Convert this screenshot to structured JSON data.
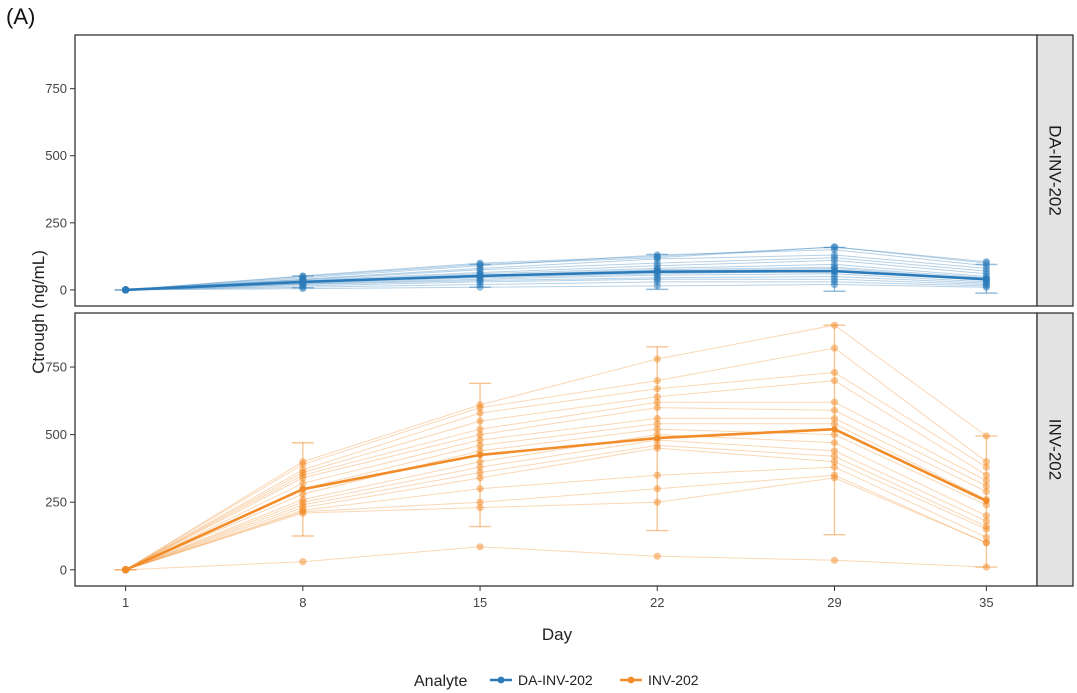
{
  "figure_label": "(A)",
  "chart_data": {
    "type": "line",
    "xlabel": "Day",
    "ylabel": "Ctrough (ng/mL)",
    "x_ticks": [
      1,
      8,
      15,
      22,
      29,
      35
    ],
    "y_ticks": [
      0,
      250,
      500,
      750
    ],
    "xlim": [
      -1,
      37
    ],
    "ylim": [
      -60,
      950
    ],
    "grid": false,
    "legend": {
      "title": "Analyte",
      "position": "bottom",
      "entries": [
        "DA-INV-202",
        "INV-202"
      ]
    },
    "colors": {
      "DA-INV-202": "#2b7bba",
      "INV-202": "#f28c28"
    },
    "facets": [
      {
        "strip_label": "DA-INV-202",
        "analyte": "DA-INV-202",
        "mean": {
          "x": [
            1,
            8,
            15,
            22,
            29,
            35
          ],
          "y": [
            0,
            30,
            52,
            68,
            70,
            40
          ]
        },
        "error_bars": [
          {
            "x": 1,
            "low": 0,
            "high": 0
          },
          {
            "x": 8,
            "low": 8,
            "high": 52
          },
          {
            "x": 15,
            "low": 10,
            "high": 95
          },
          {
            "x": 22,
            "low": 2,
            "high": 132
          },
          {
            "x": 29,
            "low": -5,
            "high": 158
          },
          {
            "x": 35,
            "low": -12,
            "high": 95
          }
        ],
        "subjects": [
          [
            0,
            50,
            95,
            120,
            160,
            100
          ],
          [
            0,
            45,
            90,
            130,
            150,
            90
          ],
          [
            0,
            40,
            80,
            115,
            130,
            80
          ],
          [
            0,
            38,
            75,
            100,
            120,
            70
          ],
          [
            0,
            35,
            65,
            90,
            110,
            60
          ],
          [
            0,
            32,
            60,
            80,
            95,
            50
          ],
          [
            0,
            30,
            55,
            75,
            85,
            45
          ],
          [
            0,
            28,
            50,
            70,
            80,
            40
          ],
          [
            0,
            25,
            45,
            60,
            70,
            35
          ],
          [
            0,
            22,
            40,
            55,
            60,
            30
          ],
          [
            0,
            20,
            35,
            45,
            50,
            25
          ],
          [
            0,
            15,
            30,
            40,
            40,
            20
          ],
          [
            0,
            10,
            20,
            30,
            30,
            15
          ],
          [
            0,
            5,
            10,
            15,
            20,
            10
          ],
          [
            0,
            52,
            100,
            125,
            160,
            105
          ]
        ]
      },
      {
        "strip_label": "INV-202",
        "analyte": "INV-202",
        "mean": {
          "x": [
            1,
            8,
            15,
            22,
            29,
            35
          ],
          "y": [
            0,
            298,
            425,
            487,
            520,
            255
          ]
        },
        "error_bars": [
          {
            "x": 1,
            "low": 0,
            "high": 0
          },
          {
            "x": 8,
            "low": 125,
            "high": 470
          },
          {
            "x": 15,
            "low": 160,
            "high": 690
          },
          {
            "x": 22,
            "low": 145,
            "high": 825
          },
          {
            "x": 29,
            "low": 130,
            "high": 905
          },
          {
            "x": 35,
            "low": 10,
            "high": 495
          }
        ],
        "subjects": [
          [
            0,
            400,
            610,
            780,
            905,
            495
          ],
          [
            0,
            390,
            600,
            700,
            820,
            400
          ],
          [
            0,
            370,
            580,
            670,
            730,
            380
          ],
          [
            0,
            360,
            550,
            640,
            700,
            350
          ],
          [
            0,
            350,
            520,
            620,
            620,
            330
          ],
          [
            0,
            340,
            500,
            600,
            590,
            310
          ],
          [
            0,
            320,
            480,
            560,
            560,
            290
          ],
          [
            0,
            300,
            460,
            540,
            540,
            260
          ],
          [
            0,
            280,
            440,
            520,
            500,
            240
          ],
          [
            0,
            260,
            400,
            500,
            470,
            200
          ],
          [
            0,
            250,
            380,
            480,
            440,
            180
          ],
          [
            0,
            240,
            360,
            460,
            420,
            160
          ],
          [
            0,
            230,
            340,
            450,
            400,
            150
          ],
          [
            0,
            220,
            300,
            350,
            380,
            120
          ],
          [
            0,
            215,
            250,
            300,
            350,
            100
          ],
          [
            0,
            210,
            230,
            250,
            340,
            100
          ],
          [
            0,
            30,
            85,
            50,
            35,
            10
          ]
        ]
      }
    ]
  }
}
